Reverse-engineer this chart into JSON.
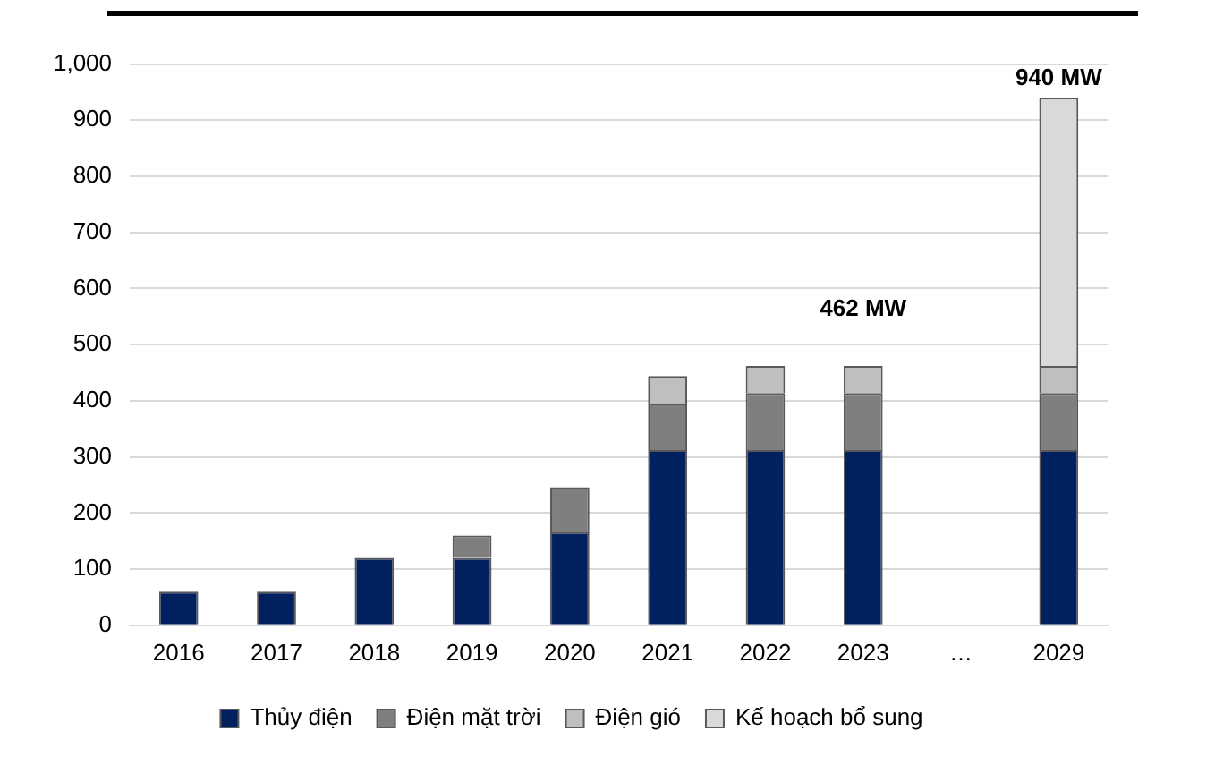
{
  "chart_data": {
    "type": "bar",
    "stacked": true,
    "categories": [
      "2016",
      "2017",
      "2018",
      "2019",
      "2020",
      "2021",
      "2022",
      "2023",
      "…",
      "2029"
    ],
    "series": [
      {
        "name": "Thủy điện",
        "color": "#002060",
        "values": [
          60,
          60,
          120,
          120,
          166,
          312,
          312,
          312,
          null,
          312
        ]
      },
      {
        "name": "Điện mặt trời",
        "color": "#7f7f7f",
        "values": [
          null,
          null,
          null,
          40,
          80,
          83,
          102,
          102,
          null,
          102
        ]
      },
      {
        "name": "Điện gió",
        "color": "#bfbfbf",
        "values": [
          null,
          null,
          null,
          null,
          null,
          49,
          48,
          48,
          null,
          48
        ]
      },
      {
        "name": "Kế hoạch bổ sung",
        "color": "#d9d9d9",
        "values": [
          null,
          null,
          null,
          null,
          null,
          null,
          null,
          null,
          null,
          478
        ]
      }
    ],
    "ylim": [
      0,
      1000
    ],
    "yticks": [
      {
        "value": 0,
        "label": "0"
      },
      {
        "value": 100,
        "label": "100"
      },
      {
        "value": 200,
        "label": "200"
      },
      {
        "value": 300,
        "label": "300"
      },
      {
        "value": 400,
        "label": "400"
      },
      {
        "value": 500,
        "label": "500"
      },
      {
        "value": 600,
        "label": "600"
      },
      {
        "value": 700,
        "label": "700"
      },
      {
        "value": 800,
        "label": "800"
      },
      {
        "value": 900,
        "label": "900"
      },
      {
        "value": 1000,
        "label": "1,000"
      }
    ],
    "grid": "y",
    "legend": "bottom",
    "annotations": [
      {
        "text": "462 MW",
        "x": "2023",
        "y": 462
      },
      {
        "text": "940 MW",
        "x": "2029",
        "y": 940
      }
    ]
  }
}
